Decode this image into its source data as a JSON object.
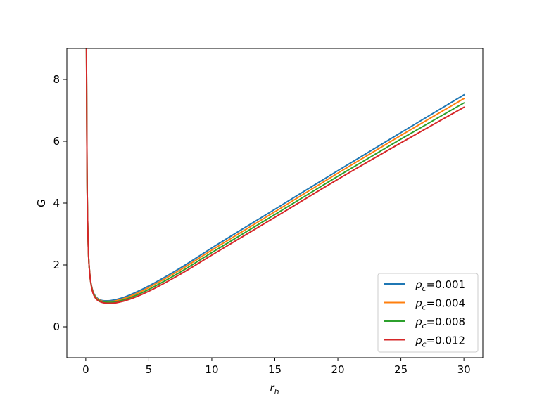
{
  "chart_data": {
    "type": "line",
    "xlabel_base": "r",
    "xlabel_sub": "h",
    "ylabel": "G",
    "xlim": [
      -1.5,
      31.5
    ],
    "ylim": [
      -1.0,
      9.0
    ],
    "xticks": [
      0,
      5,
      10,
      15,
      20,
      25,
      30
    ],
    "yticks": [
      0,
      2,
      4,
      6,
      8
    ],
    "grid": false,
    "legend_position": "lower-right",
    "legend_prefix_base": "ρ",
    "legend_prefix_sub": "c",
    "series": [
      {
        "name": "=0.001",
        "color": "#1f77b4",
        "x": [
          0.05,
          0.1,
          0.2,
          0.3,
          0.5,
          0.75,
          1.0,
          1.5,
          2.0,
          3.0,
          4.0,
          5.0,
          7.5,
          10,
          15,
          20,
          25,
          30
        ],
        "y": [
          9.5,
          5.1,
          2.6,
          1.8,
          1.25,
          1.0,
          0.9,
          0.84,
          0.85,
          0.95,
          1.12,
          1.32,
          1.9,
          2.55,
          3.8,
          5.05,
          6.28,
          7.5
        ]
      },
      {
        "name": "=0.004",
        "color": "#ff7f0e",
        "x": [
          0.05,
          0.1,
          0.2,
          0.3,
          0.5,
          0.75,
          1.0,
          1.5,
          2.0,
          3.0,
          4.0,
          5.0,
          7.5,
          10,
          15,
          20,
          25,
          30
        ],
        "y": [
          9.5,
          5.1,
          2.6,
          1.8,
          1.24,
          0.98,
          0.88,
          0.82,
          0.82,
          0.91,
          1.07,
          1.27,
          1.84,
          2.48,
          3.72,
          4.97,
          6.19,
          7.38
        ]
      },
      {
        "name": "=0.008",
        "color": "#2ca02c",
        "x": [
          0.05,
          0.1,
          0.2,
          0.3,
          0.5,
          0.75,
          1.0,
          1.5,
          2.0,
          3.0,
          4.0,
          5.0,
          7.5,
          10,
          15,
          20,
          25,
          30
        ],
        "y": [
          9.5,
          5.1,
          2.6,
          1.8,
          1.22,
          0.96,
          0.86,
          0.8,
          0.79,
          0.87,
          1.02,
          1.21,
          1.77,
          2.4,
          3.63,
          4.87,
          6.07,
          7.24
        ]
      },
      {
        "name": "=0.012",
        "color": "#d62728",
        "x": [
          0.05,
          0.1,
          0.2,
          0.3,
          0.5,
          0.75,
          1.0,
          1.5,
          2.0,
          3.0,
          4.0,
          5.0,
          7.5,
          10,
          15,
          20,
          25,
          30
        ],
        "y": [
          9.5,
          5.1,
          2.6,
          1.8,
          1.2,
          0.94,
          0.84,
          0.77,
          0.76,
          0.83,
          0.97,
          1.15,
          1.7,
          2.32,
          3.54,
          4.77,
          5.95,
          7.1
        ]
      }
    ]
  }
}
